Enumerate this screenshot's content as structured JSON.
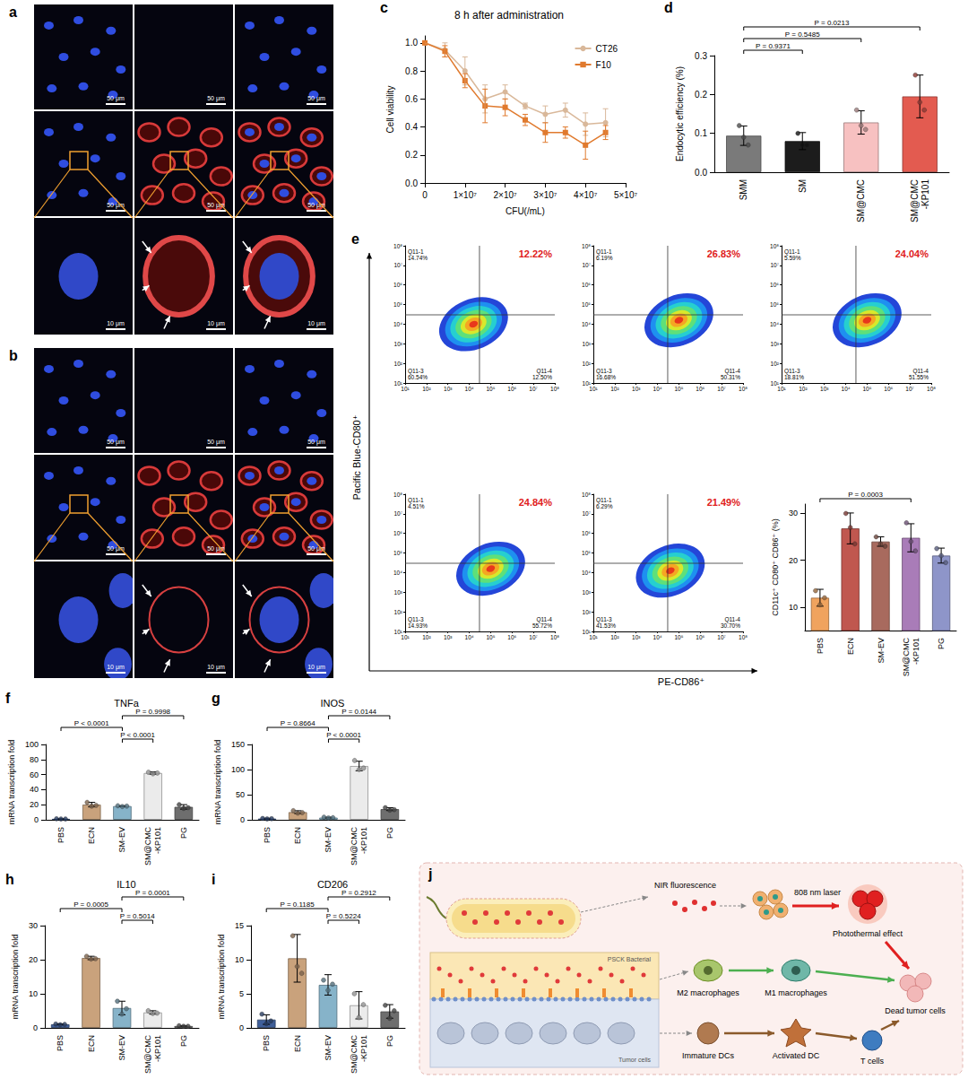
{
  "micrographs": [
    {
      "panel": "a",
      "scale_bars": [
        [
          "50 μm",
          "50 μm",
          "50 μm"
        ],
        [
          "50 μm",
          "50 μm",
          "50 μm"
        ],
        [
          "10 μm",
          "10 μm",
          "10 μm"
        ]
      ]
    },
    {
      "panel": "b",
      "scale_bars": [
        [
          "50 μm",
          "50 μm",
          "50 μm"
        ],
        [
          "50 μm",
          "50 μm",
          "50 μm"
        ],
        [
          "10 μm",
          "10 μm",
          "10 μm"
        ]
      ]
    }
  ],
  "chart_data": [
    {
      "panel": "c",
      "type": "line",
      "title": "8 h after administration",
      "x_label": "CFU(/mL)",
      "y_label": "Cell viability",
      "x": [
        0,
        5000000,
        10000000,
        15000000,
        20000000,
        25000000,
        30000000,
        35000000,
        40000000,
        45000000
      ],
      "xlim": [
        0,
        50000000
      ],
      "xticks": [
        0,
        {
          "value": 10000000,
          "label": "1×10⁷"
        },
        {
          "value": 20000000,
          "label": "2×10⁷"
        },
        {
          "value": 30000000,
          "label": "3×10⁷"
        },
        {
          "value": 40000000,
          "label": "4×10⁷"
        },
        {
          "value": 50000000,
          "label": "5×10⁷"
        }
      ],
      "ylim": [
        0,
        1.05
      ],
      "yticks": [
        {
          "value": 0,
          "label": "0.0"
        },
        0.2,
        0.4,
        0.6,
        0.8,
        {
          "value": 1,
          "label": "1.0"
        }
      ],
      "legend": "upper right",
      "series": [
        {
          "name": "CT26",
          "color": "#d9b89a",
          "marker": "circle",
          "values": [
            1,
            0.95,
            0.8,
            0.6,
            0.65,
            0.55,
            0.49,
            0.52,
            0.42,
            0.43
          ],
          "errors": [
            0,
            0.05,
            0.1,
            0.1,
            0.05,
            0.02,
            0.06,
            0.05,
            0.08,
            0.1
          ]
        },
        {
          "name": "F10",
          "color": "#e07a2e",
          "marker": "square",
          "values": [
            1,
            0.94,
            0.73,
            0.55,
            0.54,
            0.45,
            0.36,
            0.36,
            0.27,
            0.36
          ],
          "errors": [
            0,
            0.04,
            0.05,
            0.12,
            0.06,
            0.04,
            0.07,
            0.04,
            0.1,
            0.05
          ]
        }
      ]
    },
    {
      "panel": "d",
      "type": "bar",
      "y_label": "Endocytic efficiency (%)",
      "categories": [
        "SMM",
        "SM",
        "SM@CMC",
        "SM@CMC-KP101"
      ],
      "values": [
        0.094,
        0.08,
        0.128,
        0.195
      ],
      "errors": [
        0.025,
        0.022,
        0.03,
        0.055
      ],
      "points": [
        [
          0.12,
          0.09,
          0.07
        ],
        [
          0.1,
          0.07,
          0.07
        ],
        [
          0.16,
          0.12,
          0.11
        ],
        [
          0.25,
          0.18,
          0.16
        ]
      ],
      "colors": [
        "#7a7a7a",
        "#1c1c1c",
        "#f7c1c1",
        "#e35b50"
      ],
      "ylim": [
        0,
        0.3
      ],
      "yticks": [
        {
          "value": 0,
          "label": "0.0"
        },
        0.1,
        0.2,
        0.3
      ],
      "comparisons": [
        {
          "groups": [
            "SMM",
            "SM"
          ],
          "label": "P = 0.9371"
        },
        {
          "groups": [
            "SMM",
            "SM@CMC"
          ],
          "label": "P = 0.5485"
        },
        {
          "groups": [
            "SMM",
            "SM@CMC-KP101"
          ],
          "label": "P = 0.0213"
        }
      ]
    },
    {
      "panel": "e",
      "type": "density",
      "x_label": "PE-CD86⁺",
      "y_label": "Pacific Blue-CD80⁺",
      "log": true,
      "xlim": [
        10,
        100000000
      ],
      "ylim": [
        10,
        100000000
      ],
      "xticks": [
        {
          "value": 10,
          "label": "10¹"
        },
        {
          "value": 100,
          "label": "10²"
        },
        {
          "value": 1000,
          "label": "10³"
        },
        {
          "value": 10000,
          "label": "10⁴"
        },
        {
          "value": 100000,
          "label": "10⁵"
        },
        {
          "value": 1000000,
          "label": "10⁶"
        },
        {
          "value": 10000000,
          "label": "10⁷"
        },
        {
          "value": 100000000,
          "label": "10⁸"
        }
      ],
      "yticks": [
        {
          "value": 10,
          "label": "10¹"
        },
        {
          "value": 100,
          "label": "10²"
        },
        {
          "value": 1000,
          "label": "10³"
        },
        {
          "value": 10000,
          "label": "10⁴"
        },
        {
          "value": 100000,
          "label": "10⁵"
        },
        {
          "value": 1000000,
          "label": "10⁶"
        },
        {
          "value": 10000000,
          "label": "10⁷"
        },
        {
          "value": 100000000,
          "label": "10⁸"
        }
      ],
      "plots": [
        {
          "gate": [
            30000,
            30000
          ],
          "population_center": [
            15849,
            10000
          ],
          "quadrants": [
            {
              "name": "Q11-1",
              "value": 14.74,
              "value_label": "14.74%"
            },
            {
              "value": 12.22,
              "value_label": "12.22%"
            },
            {
              "name": "Q11-3",
              "value": 60.54,
              "value_label": "60.54%"
            },
            {
              "name": "Q11-4",
              "value": 12.5,
              "value_label": "12.50%"
            }
          ]
        },
        {
          "gate": [
            30000,
            30000
          ],
          "population_center": [
            100000,
            15849
          ],
          "quadrants": [
            {
              "name": "Q11-1",
              "value": 6.19,
              "value_label": "6.19%"
            },
            {
              "value": 26.83,
              "value_label": "26.83%"
            },
            {
              "name": "Q11-3",
              "value": 16.68,
              "value_label": "16.68%"
            },
            {
              "name": "Q11-4",
              "value": 50.31,
              "value_label": "50.31%"
            }
          ]
        },
        {
          "gate": [
            30000,
            30000
          ],
          "population_center": [
            100000,
            15849
          ],
          "quadrants": [
            {
              "name": "Q11-1",
              "value": 5.59,
              "value_label": "5.59%"
            },
            {
              "value": 24.04,
              "value_label": "24.04%"
            },
            {
              "name": "Q11-3",
              "value": 18.81,
              "value_label": "18.81%"
            },
            {
              "name": "Q11-4",
              "value": 51.55,
              "value_label": "51.55%"
            }
          ]
        },
        {
          "gate": [
            30000,
            30000
          ],
          "population_center": [
            100000,
            15849
          ],
          "quadrants": [
            {
              "name": "Q11-1",
              "value": 4.51,
              "value_label": "4.51%"
            },
            {
              "value": 24.84,
              "value_label": "24.84%"
            },
            {
              "name": "Q11-3",
              "value": 14.93,
              "value_label": "14.93%"
            },
            {
              "name": "Q11-4",
              "value": 55.72,
              "value_label": "55.72%"
            }
          ]
        },
        {
          "gate": [
            30000,
            30000
          ],
          "population_center": [
            39811,
            12589
          ],
          "quadrants": [
            {
              "name": "Q11-1",
              "value": 6.29,
              "value_label": "6.29%"
            },
            {
              "value": 21.49,
              "value_label": "21.49%"
            },
            {
              "name": "Q11-3",
              "value": 41.53,
              "value_label": "41.53%"
            },
            {
              "name": "Q11-4",
              "value": 30.7,
              "value_label": "30.70%"
            }
          ]
        }
      ]
    },
    {
      "type": "bar",
      "y_label": "CD11c⁺ CD80⁺ CD86⁺ (%)",
      "categories": [
        "PBS",
        "ECN",
        "SM-EV",
        "SM@CMC-KP101",
        "PG"
      ],
      "values": [
        12,
        26.8,
        24,
        24.8,
        21
      ],
      "errors": [
        1.8,
        3.3,
        1,
        3,
        1.6
      ],
      "points": [
        [
          13.5,
          10.5,
          12
        ],
        [
          30,
          27,
          23.5
        ],
        [
          25,
          23.5,
          23
        ],
        [
          28,
          24,
          22
        ],
        [
          22.5,
          21,
          19.5
        ]
      ],
      "colors": [
        "#f0a35e",
        "#c0574f",
        "#a86a5e",
        "#a97cb8",
        "#8e95c9"
      ],
      "ylim": [
        5,
        32
      ],
      "yticks": [
        10,
        20,
        30
      ],
      "comparisons": [
        {
          "groups": [
            "PBS",
            "SM@CMC-KP101"
          ],
          "label": "P = 0.0003"
        }
      ]
    },
    {
      "panel": "f",
      "type": "bar",
      "title": "TNFa",
      "y_label": "mRNA transcription fold",
      "categories": [
        "PBS",
        "ECN",
        "SM-EV",
        "SM@CMC-KP101",
        "PG"
      ],
      "values": [
        1,
        20,
        18,
        62,
        17
      ],
      "errors": [
        0.2,
        3,
        0.5,
        1.5,
        3
      ],
      "points": [
        [
          1.2,
          0.9,
          0.9
        ],
        [
          23,
          18,
          19
        ],
        [
          18.5,
          17.5,
          18
        ],
        [
          63,
          61,
          62
        ],
        [
          20,
          15,
          16
        ]
      ],
      "colors": [
        "#3f5f9a",
        "#c9a27c",
        "#86b3c9",
        "#ebebeb",
        "#6e6e6e"
      ],
      "ylim": [
        0,
        100
      ],
      "yticks": [
        0,
        20,
        40,
        60,
        80,
        100
      ],
      "comparisons": [
        {
          "groups": [
            "SM-EV",
            "SM@CMC-KP101"
          ],
          "label": "P < 0.0001"
        },
        {
          "groups": [
            "PBS",
            "SM-EV"
          ],
          "label": "P < 0.0001"
        },
        {
          "groups": [
            "SM-EV",
            "PG"
          ],
          "label": "P = 0.9998"
        }
      ]
    },
    {
      "panel": "g",
      "type": "bar",
      "title": "INOS",
      "y_label": "mRNA transcription fold",
      "categories": [
        "PBS",
        "ECN",
        "SM-EV",
        "SM@CMC-KP101",
        "PG"
      ],
      "values": [
        2,
        15,
        4,
        107,
        21
      ],
      "errors": [
        0.8,
        2.8,
        0.9,
        9.5,
        2.8
      ],
      "points": [
        [
          2.5,
          1.5,
          2
        ],
        [
          18,
          13,
          14
        ],
        [
          5,
          3.5,
          4
        ],
        [
          118,
          100,
          103
        ],
        [
          24,
          19,
          20
        ]
      ],
      "colors": [
        "#3f5f9a",
        "#c9a27c",
        "#86b3c9",
        "#ebebeb",
        "#6e6e6e"
      ],
      "ylim": [
        0,
        150
      ],
      "yticks": [
        0,
        50,
        100,
        150
      ],
      "comparisons": [
        {
          "groups": [
            "SM-EV",
            "SM@CMC-KP101"
          ],
          "label": "P < 0.0001"
        },
        {
          "groups": [
            "PBS",
            "SM-EV"
          ],
          "label": "P = 0.8664"
        },
        {
          "groups": [
            "SM-EV",
            "PG"
          ],
          "label": "P = 0.0144"
        }
      ]
    },
    {
      "panel": "h",
      "type": "bar",
      "title": "IL10",
      "y_label": "mRNA transcription fold",
      "categories": [
        "PBS",
        "ECN",
        "SM-EV",
        "SM@CMC-KP101",
        "PG"
      ],
      "values": [
        1,
        20.5,
        5.8,
        4.5,
        0.5
      ],
      "errors": [
        0.15,
        0.5,
        2,
        0.5,
        0.1
      ],
      "points": [
        [
          1.1,
          0.9,
          1
        ],
        [
          21,
          20.2,
          20.3
        ],
        [
          7.8,
          4,
          5.6
        ],
        [
          5,
          4.2,
          4.3
        ],
        [
          0.6,
          0.45,
          0.45
        ]
      ],
      "colors": [
        "#3f5f9a",
        "#c9a27c",
        "#86b3c9",
        "#ebebeb",
        "#6e6e6e"
      ],
      "ylim": [
        0,
        30
      ],
      "yticks": [
        0,
        10,
        20,
        30
      ],
      "comparisons": [
        {
          "groups": [
            "SM-EV",
            "SM@CMC-KP101"
          ],
          "label": "P = 0.5014"
        },
        {
          "groups": [
            "PBS",
            "SM-EV"
          ],
          "label": "P = 0.0005"
        },
        {
          "groups": [
            "SM-EV",
            "PG"
          ],
          "label": "P = 0.0001"
        }
      ]
    },
    {
      "panel": "i",
      "type": "bar",
      "title": "CD206",
      "y_label": "mRNA transcription fold",
      "categories": [
        "PBS",
        "ECN",
        "SM-EV",
        "SM@CMC-KP101",
        "PG"
      ],
      "values": [
        1.2,
        10.2,
        6.3,
        3.3,
        2.4
      ],
      "errors": [
        0.7,
        3.5,
        1.5,
        2,
        1
      ],
      "points": [
        [
          2,
          0.6,
          1
        ],
        [
          13.5,
          9,
          8
        ],
        [
          7,
          5.5,
          6.4
        ],
        [
          5,
          1.5,
          3.4
        ],
        [
          3.3,
          1.4,
          2.5
        ]
      ],
      "colors": [
        "#3f5f9a",
        "#c9a27c",
        "#86b3c9",
        "#ebebeb",
        "#6e6e6e"
      ],
      "ylim": [
        0,
        15
      ],
      "yticks": [
        0,
        5,
        10,
        15
      ],
      "comparisons": [
        {
          "groups": [
            "SM-EV",
            "SM@CMC-KP101"
          ],
          "label": "P = 0.5224"
        },
        {
          "groups": [
            "PBS",
            "SM-EV"
          ],
          "label": "P = 0.1185"
        },
        {
          "groups": [
            "SM-EV",
            "PG"
          ],
          "label": "P = 0.2912"
        }
      ]
    }
  ],
  "diagram": {
    "panel": "j",
    "labels": {
      "nir": "NIR fluorescence",
      "laser": "808 nm laser",
      "photothermal": "Photothermal effect",
      "m2": "M2 macrophages",
      "m1": "M1 macrophages",
      "dead": "Dead tumor cells",
      "bacterial": "PSCK Bacterial",
      "tumor": "Tumor cells",
      "idc": "Immature DCs",
      "adc": "Activated DC",
      "tcell": "T cells"
    }
  }
}
